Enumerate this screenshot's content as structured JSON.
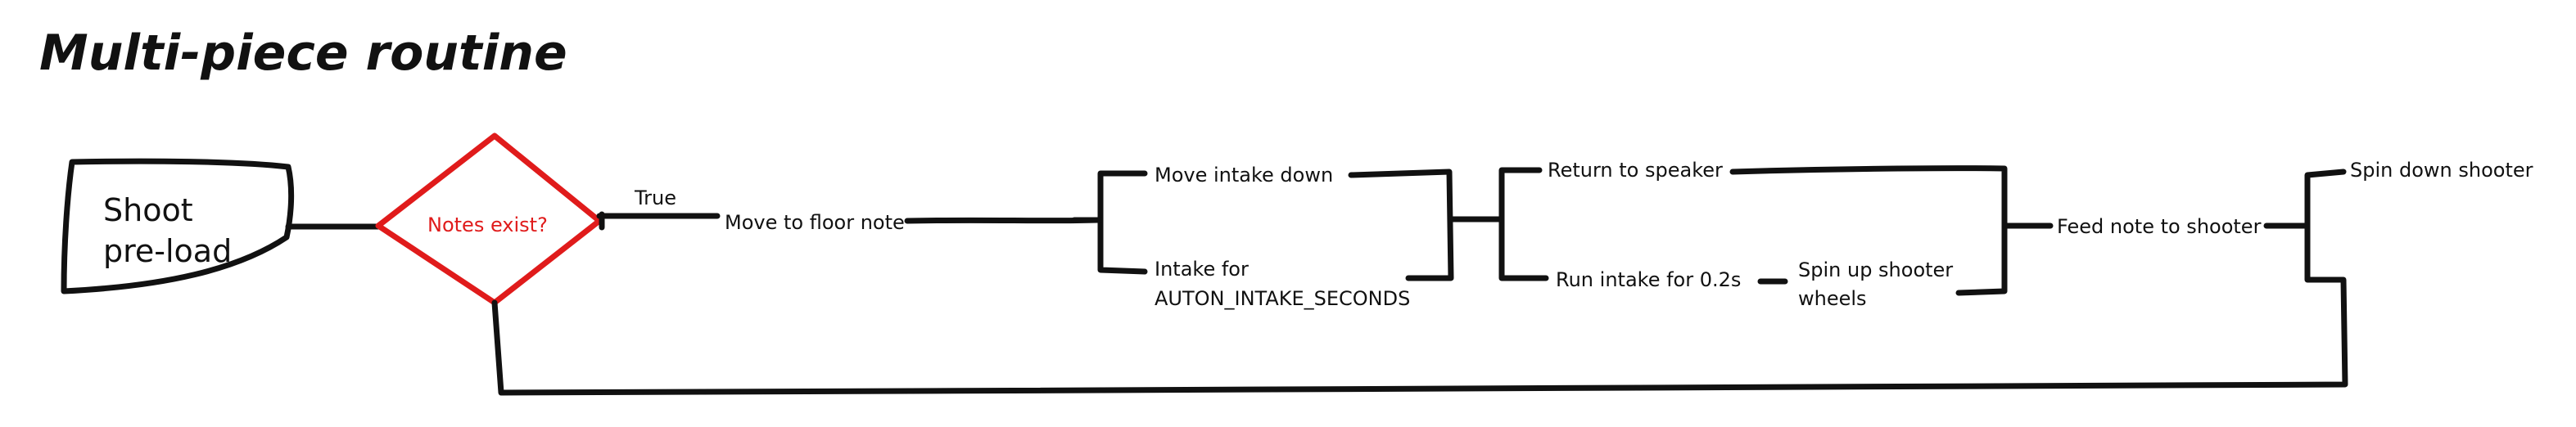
{
  "title": "Multi-piece routine",
  "nodes": {
    "start": {
      "line1": "Shoot",
      "line2": "pre-load"
    },
    "decision": {
      "label": "Notes exist?",
      "branch_true": "True"
    },
    "move_floor": "Move to floor note",
    "intake_down": "Move intake down",
    "intake_for": {
      "line1": "Intake for",
      "line2": "AUTON_INTAKE_SECONDS"
    },
    "return_speaker": "Return to speaker",
    "run_intake": "Run intake for 0.2s",
    "spin_up": {
      "line1": "Spin up shooter",
      "line2": "wheels"
    },
    "feed_note": "Feed note to shooter",
    "spin_down": "Spin down shooter"
  },
  "colors": {
    "ink": "#111111",
    "decision": "#e01b1b"
  }
}
